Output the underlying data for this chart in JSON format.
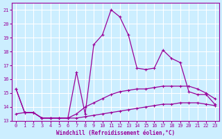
{
  "xlabel": "Windchill (Refroidissement éolien,°C)",
  "background_color": "#cceeff",
  "line_color": "#990099",
  "xlim": [
    -0.5,
    23.5
  ],
  "ylim": [
    13,
    21.5
  ],
  "yticks": [
    13,
    14,
    15,
    16,
    17,
    18,
    19,
    20,
    21
  ],
  "xticks": [
    0,
    1,
    2,
    3,
    4,
    5,
    6,
    7,
    8,
    9,
    10,
    11,
    12,
    13,
    14,
    15,
    16,
    17,
    18,
    19,
    20,
    21,
    22,
    23
  ],
  "grid_color": "#aaddee",
  "series": [
    {
      "x": [
        0,
        1,
        2,
        3,
        4,
        5,
        6,
        7,
        8,
        9,
        10,
        11,
        12,
        13,
        14,
        15,
        16,
        17,
        18,
        19,
        20,
        21,
        22,
        23
      ],
      "y": [
        13.5,
        13.6,
        13.6,
        13.2,
        13.2,
        13.2,
        13.2,
        13.2,
        13.3,
        13.4,
        13.5,
        13.6,
        13.7,
        13.8,
        13.9,
        14.0,
        14.1,
        14.2,
        14.2,
        14.3,
        14.3,
        14.3,
        14.2,
        14.1
      ],
      "marker": "+"
    },
    {
      "x": [
        0,
        1,
        2,
        3,
        4,
        5,
        6,
        7,
        8,
        9,
        10,
        11,
        12,
        13,
        14,
        15,
        16,
        17,
        18,
        19,
        20,
        21,
        22,
        23
      ],
      "y": [
        15.3,
        13.6,
        13.6,
        13.2,
        13.2,
        13.2,
        13.2,
        13.5,
        14.0,
        14.3,
        14.6,
        14.9,
        15.1,
        15.2,
        15.3,
        15.3,
        15.4,
        15.5,
        15.5,
        15.5,
        15.5,
        15.3,
        15.0,
        14.6
      ],
      "marker": "+"
    },
    {
      "x": [
        0,
        1,
        2,
        3,
        4,
        5,
        6,
        7,
        8,
        9,
        10,
        11,
        12,
        13,
        14,
        15,
        16,
        17,
        18,
        19,
        20,
        21,
        22,
        23
      ],
      "y": [
        15.3,
        13.6,
        13.6,
        13.2,
        13.2,
        13.2,
        13.2,
        16.5,
        13.5,
        18.5,
        19.2,
        21.0,
        20.5,
        19.2,
        16.8,
        16.7,
        16.8,
        18.1,
        17.5,
        17.2,
        15.1,
        14.9,
        14.9,
        14.2
      ],
      "marker": "+"
    }
  ]
}
